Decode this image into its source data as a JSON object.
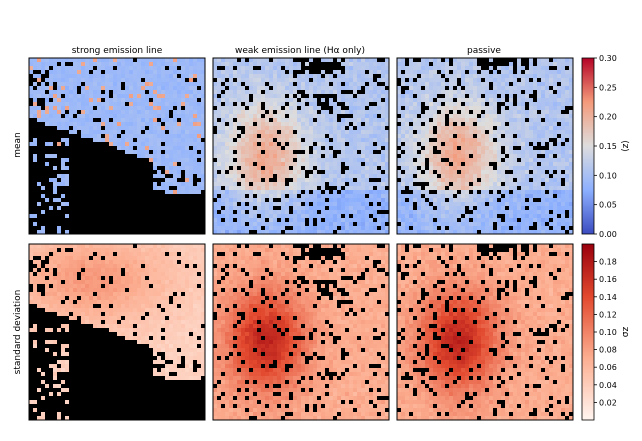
{
  "chart_data": {
    "type": "heatmap",
    "layout": {
      "rows": 2,
      "cols": 3
    },
    "column_titles": [
      "strong emission line",
      "weak emission line (Hα only)",
      "passive"
    ],
    "row_labels": [
      "mean",
      "standard deviation"
    ],
    "grid": false,
    "panels": [
      {
        "row": 0,
        "col": 0,
        "cmap": "coolwarm",
        "vmin": 0,
        "vmax": 0.3,
        "dominant": "low ⟨z⟩ (~0.07–0.12) in upper band; masked lower region"
      },
      {
        "row": 0,
        "col": 1,
        "cmap": "coolwarm",
        "vmin": 0,
        "vmax": 0.3,
        "dominant": "mixed; elevated ⟨z⟩ (~0.2) in left-center region"
      },
      {
        "row": 0,
        "col": 2,
        "cmap": "coolwarm",
        "vmin": 0,
        "vmax": 0.3,
        "dominant": "mixed; elevated ⟨z⟩ (~0.2) in center-left region"
      },
      {
        "row": 1,
        "col": 0,
        "cmap": "reds",
        "vmin": 0,
        "vmax": 0.2,
        "dominant": "low σz (~0.02–0.05)"
      },
      {
        "row": 1,
        "col": 1,
        "cmap": "reds",
        "vmin": 0,
        "vmax": 0.2,
        "dominant": "high σz (~0.12–0.18) in left-center"
      },
      {
        "row": 1,
        "col": 2,
        "cmap": "reds",
        "vmin": 0,
        "vmax": 0.2,
        "dominant": "high σz (~0.15–0.19) in center-left"
      }
    ],
    "colorbars": [
      {
        "label": "⟨z⟩",
        "cmap": "coolwarm",
        "range": [
          0,
          0.3
        ],
        "ticks": [
          "0.00",
          "0.05",
          "0.10",
          "0.15",
          "0.20",
          "0.25",
          "0.30"
        ],
        "tick_values": [
          0,
          0.05,
          0.1,
          0.15,
          0.2,
          0.25,
          0.3
        ]
      },
      {
        "label": "σz",
        "cmap": "reds",
        "range": [
          0,
          0.2
        ],
        "ticks": [
          "0.02",
          "0.04",
          "0.06",
          "0.08",
          "0.10",
          "0.12",
          "0.14",
          "0.16",
          "0.18"
        ],
        "tick_values": [
          0.02,
          0.04,
          0.06,
          0.08,
          0.1,
          0.12,
          0.14,
          0.16,
          0.18
        ]
      }
    ]
  }
}
